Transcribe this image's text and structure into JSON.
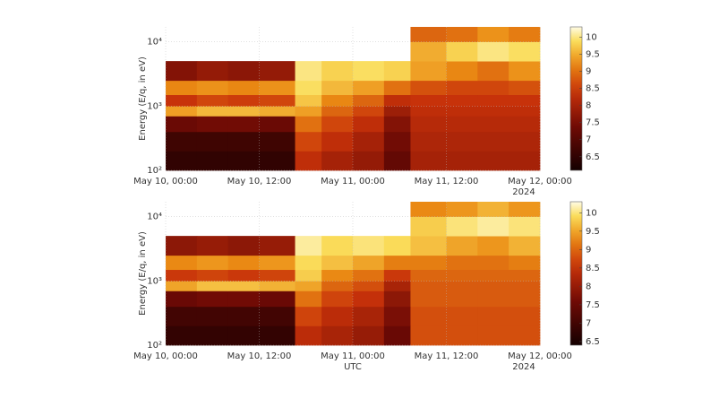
{
  "chart_data": [
    {
      "type": "heatmap",
      "ylabel": "Energy (E/q, in eV)",
      "ylog": true,
      "grid": true,
      "colormap": "hot",
      "xlim": [
        0,
        48
      ],
      "xticks": [
        {
          "value": 0,
          "label": "May 10, 00:00"
        },
        {
          "value": 12,
          "label": "May 10, 12:00"
        },
        {
          "value": 24,
          "label": "May 11, 00:00"
        },
        {
          "value": 36,
          "label": "May 11, 12:00"
        },
        {
          "value": 48,
          "label": "May 12, 00:00"
        }
      ],
      "xyear": "2024",
      "ylim": [
        100,
        17000
      ],
      "yticks": [
        {
          "value": 100,
          "label": "10²"
        },
        {
          "value": 1000,
          "label": "10³"
        },
        {
          "value": 10000,
          "label": "10⁴"
        }
      ],
      "clim": [
        6.1,
        10.3
      ],
      "cticks": [
        6.5,
        7,
        7.5,
        8,
        8.5,
        9,
        9.5,
        10
      ],
      "x_edges": [
        0,
        4,
        8,
        12,
        16.6,
        20,
        24,
        28,
        31.4,
        36,
        40,
        44,
        48
      ],
      "y_edges": [
        100,
        200,
        400,
        700,
        1000,
        1500,
        2500,
        5000,
        10000,
        17000
      ],
      "z": [
        [
          6.5,
          6.5,
          6.5,
          6.5,
          8.3,
          8.0,
          7.8,
          7.2,
          8.0,
          8.0,
          8.0,
          8.0
        ],
        [
          6.7,
          6.7,
          6.7,
          6.7,
          8.6,
          8.3,
          8.0,
          7.4,
          8.1,
          8.1,
          8.1,
          8.1
        ],
        [
          7.3,
          7.4,
          7.4,
          7.3,
          9.0,
          8.6,
          8.3,
          7.6,
          8.2,
          8.2,
          8.2,
          8.2
        ],
        [
          9.4,
          9.6,
          9.6,
          9.5,
          9.4,
          8.9,
          8.6,
          7.9,
          8.3,
          8.3,
          8.3,
          8.3
        ],
        [
          8.4,
          8.6,
          8.5,
          8.6,
          9.7,
          9.2,
          8.9,
          8.3,
          8.4,
          8.4,
          8.4,
          8.4
        ],
        [
          9.2,
          9.3,
          9.2,
          9.3,
          9.9,
          9.6,
          9.4,
          9.0,
          8.7,
          8.6,
          8.6,
          8.7
        ],
        [
          7.6,
          7.8,
          7.7,
          7.8,
          10.0,
          9.8,
          9.9,
          9.8,
          9.4,
          9.2,
          9.0,
          9.3
        ],
        [
          null,
          null,
          null,
          null,
          null,
          null,
          null,
          null,
          9.5,
          9.8,
          10.0,
          9.9
        ],
        [
          null,
          null,
          null,
          null,
          null,
          null,
          null,
          null,
          8.9,
          9.0,
          9.3,
          9.1
        ]
      ]
    },
    {
      "type": "heatmap",
      "ylabel": "Energy (E/q, in eV)",
      "xlabel": "UTC",
      "ylog": true,
      "grid": true,
      "colormap": "hot",
      "xlim": [
        0,
        48
      ],
      "xticks": [
        {
          "value": 0,
          "label": "May 10, 00:00"
        },
        {
          "value": 12,
          "label": "May 10, 12:00"
        },
        {
          "value": 24,
          "label": "May 11, 00:00"
        },
        {
          "value": 36,
          "label": "May 11, 12:00"
        },
        {
          "value": 48,
          "label": "May 12, 00:00"
        }
      ],
      "xyear": "2024",
      "ylim": [
        100,
        17000
      ],
      "yticks": [
        {
          "value": 100,
          "label": "10²"
        },
        {
          "value": 1000,
          "label": "10³"
        },
        {
          "value": 10000,
          "label": "10⁴"
        }
      ],
      "clim": [
        6.4,
        10.3
      ],
      "cticks": [
        6.5,
        7,
        7.5,
        8,
        8.5,
        9,
        9.5,
        10
      ],
      "x_edges": [
        0,
        4,
        8,
        12,
        16.6,
        20,
        24,
        28,
        31.4,
        36,
        40,
        44,
        48
      ],
      "y_edges": [
        100,
        200,
        400,
        700,
        1000,
        1500,
        2500,
        5000,
        10000,
        17000
      ],
      "z": [
        [
          6.8,
          6.8,
          6.8,
          6.8,
          8.4,
          8.2,
          8.0,
          7.5,
          8.8,
          8.8,
          8.8,
          8.8
        ],
        [
          7.0,
          7.0,
          7.0,
          7.0,
          8.7,
          8.4,
          8.2,
          7.7,
          8.8,
          8.8,
          8.8,
          8.8
        ],
        [
          7.5,
          7.6,
          7.6,
          7.5,
          9.1,
          8.7,
          8.5,
          7.9,
          8.9,
          8.9,
          8.9,
          8.9
        ],
        [
          9.5,
          9.7,
          9.7,
          9.6,
          9.5,
          9.0,
          8.8,
          8.2,
          8.9,
          8.9,
          8.9,
          8.9
        ],
        [
          8.6,
          8.7,
          8.6,
          8.7,
          9.8,
          9.3,
          9.1,
          8.6,
          9.0,
          9.0,
          9.0,
          9.0
        ],
        [
          9.3,
          9.4,
          9.3,
          9.4,
          9.9,
          9.7,
          9.5,
          9.2,
          9.2,
          9.1,
          9.1,
          9.2
        ],
        [
          7.9,
          8.0,
          7.9,
          8.0,
          10.1,
          9.9,
          10.0,
          9.9,
          9.7,
          9.5,
          9.4,
          9.6
        ],
        [
          null,
          null,
          null,
          null,
          null,
          null,
          null,
          null,
          9.8,
          10.0,
          10.1,
          10.0
        ],
        [
          null,
          null,
          null,
          null,
          null,
          null,
          null,
          null,
          9.3,
          9.4,
          9.6,
          9.4
        ]
      ]
    }
  ]
}
